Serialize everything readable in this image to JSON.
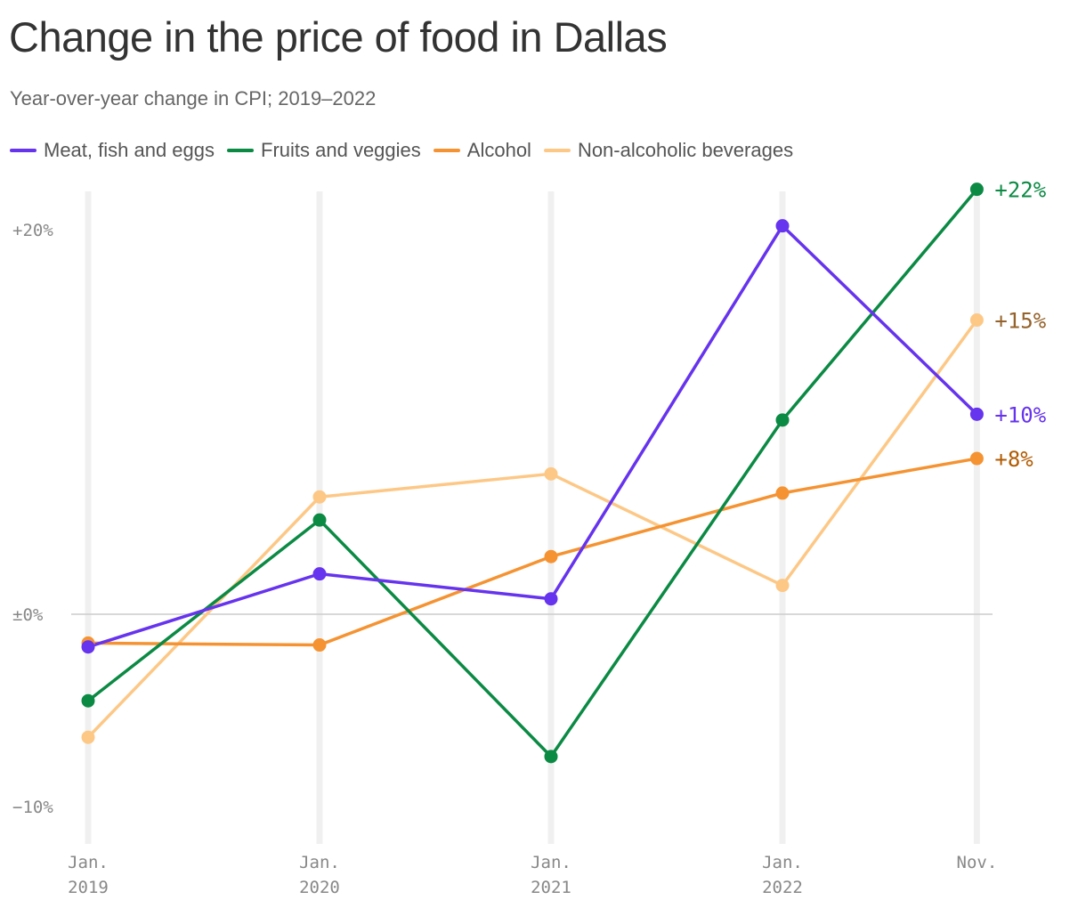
{
  "title": "Change in the price of food in Dallas",
  "subtitle": "Year-over-year change in CPI; 2019–2022",
  "chart_data": {
    "type": "line",
    "x": [
      0,
      1,
      2,
      3,
      3.84
    ],
    "x_tick_labels": [
      {
        "line1": "Jan.",
        "line2": "2019"
      },
      {
        "line1": "Jan.",
        "line2": "2020"
      },
      {
        "line1": "Jan.",
        "line2": "2021"
      },
      {
        "line1": "Jan.",
        "line2": "2022"
      },
      {
        "line1": "Nov.",
        "line2": ""
      }
    ],
    "y_ticks": [
      {
        "value": 20,
        "label": "+20%"
      },
      {
        "value": 0,
        "label": "±0%"
      },
      {
        "value": -10,
        "label": "−10%"
      }
    ],
    "ylim": [
      -11.5,
      22.5
    ],
    "series": [
      {
        "name": "Meat, fish and eggs",
        "color": "#6633ee",
        "label_color": "#6633ee",
        "end_label": "+10%",
        "values": [
          -1.7,
          2.1,
          0.8,
          20.2,
          10.4
        ]
      },
      {
        "name": "Fruits and veggies",
        "color": "#0b8a44",
        "label_color": "#0b8a44",
        "end_label": "+22%",
        "values": [
          -4.5,
          4.9,
          -7.4,
          10.1,
          22.1
        ]
      },
      {
        "name": "Alcohol",
        "color": "#f59332",
        "label_color": "#b05a00",
        "end_label": "+8%",
        "values": [
          -1.5,
          -1.6,
          3.0,
          6.3,
          8.1
        ]
      },
      {
        "name": "Non-alcoholic beverages",
        "color": "#fdc886",
        "label_color": "#94622a",
        "end_label": "+15%",
        "values": [
          -6.4,
          6.1,
          7.3,
          1.5,
          15.3
        ]
      }
    ],
    "grid": true,
    "legend_position": "top-left"
  }
}
